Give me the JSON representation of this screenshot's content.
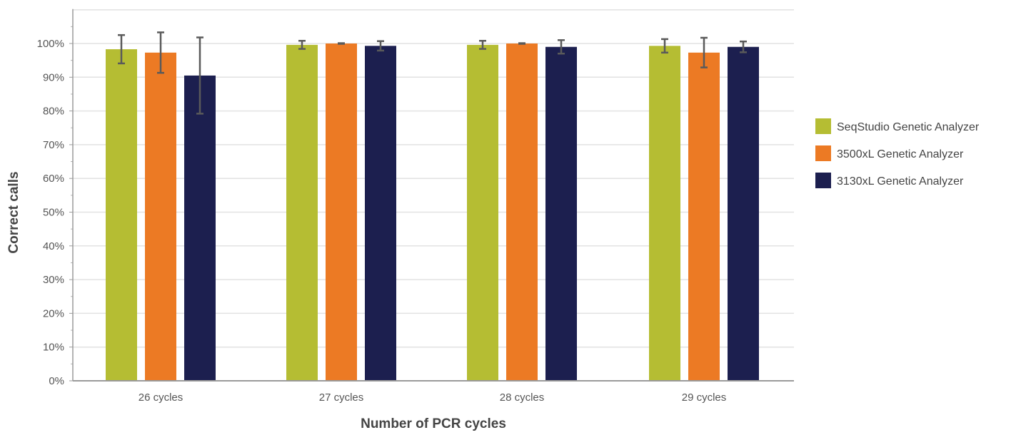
{
  "chart_data": {
    "type": "bar",
    "title": "",
    "xlabel": "Number of PCR cycles",
    "ylabel": "Correct calls",
    "ylim": [
      0,
      110
    ],
    "yticks": [
      0,
      10,
      20,
      30,
      40,
      50,
      60,
      70,
      80,
      90,
      100
    ],
    "ytick_labels": [
      "0%",
      "10%",
      "20%",
      "30%",
      "40%",
      "50%",
      "60%",
      "70%",
      "80%",
      "90%",
      "100%"
    ],
    "grid": true,
    "legend_position": "right",
    "categories": [
      "26 cycles",
      "27 cycles",
      "28 cycles",
      "29 cycles"
    ],
    "series": [
      {
        "name": "SeqStudio Genetic Analyzer",
        "color": "#b5bd33",
        "values": [
          98.3,
          99.6,
          99.6,
          99.3
        ],
        "errors": [
          4.2,
          1.2,
          1.2,
          2.0
        ]
      },
      {
        "name": "3500xL Genetic Analyzer",
        "color": "#ec7a24",
        "values": [
          97.3,
          100.0,
          100.0,
          97.3
        ],
        "errors": [
          6.0,
          0.1,
          0.1,
          4.4
        ]
      },
      {
        "name": "3130xL Genetic Analyzer",
        "color": "#1c1f4f",
        "values": [
          90.5,
          99.3,
          99.0,
          99.0
        ],
        "errors": [
          11.3,
          1.4,
          2.0,
          1.6
        ]
      }
    ]
  }
}
